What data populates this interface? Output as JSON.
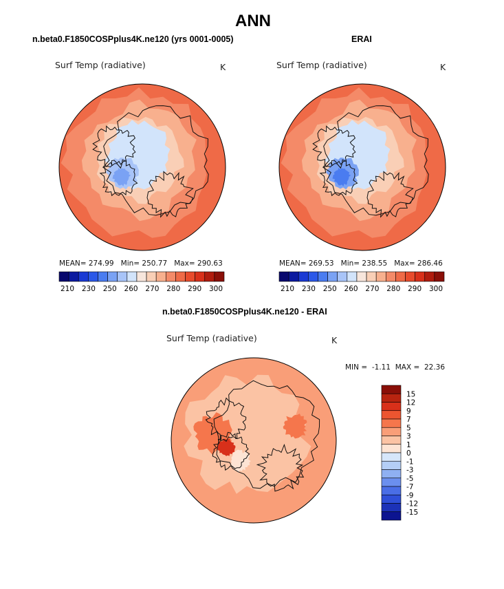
{
  "figure_title": "ANN",
  "chart_data": [
    {
      "type": "heatmap",
      "projection": "north-polar-stereographic",
      "title": "n.beta0.F1850COSPplus4K.ne120 (yrs 0001-0005)",
      "variable": "Surf Temp (radiative)",
      "units": "K",
      "stats": {
        "mean_label": "MEAN=",
        "mean": "274.99",
        "min_label": "Min=",
        "min": "250.77",
        "max_label": "Max=",
        "max": "290.63"
      },
      "colorbar_levels": [
        210,
        215,
        220,
        225,
        230,
        235,
        240,
        245,
        250,
        255,
        260,
        265,
        270,
        275,
        280,
        285,
        290,
        295,
        300,
        305
      ],
      "colorbar_tick_labels": [
        "210",
        "230",
        "250",
        "260",
        "270",
        "280",
        "290",
        "300"
      ],
      "colorbar_colors": [
        "#08086e",
        "#0b1aa0",
        "#1a3ad4",
        "#2b58e8",
        "#4a7cf0",
        "#7aa2f4",
        "#a8c4f8",
        "#d2e4fb",
        "#f7e6dc",
        "#f9cfb6",
        "#f8b08e",
        "#f48a68",
        "#ef6a47",
        "#e84b2c",
        "#d8301a",
        "#b01c0e",
        "#8a0f08"
      ]
    },
    {
      "type": "heatmap",
      "projection": "north-polar-stereographic",
      "title": "ERAI",
      "variable": "Surf Temp (radiative)",
      "units": "K",
      "stats": {
        "mean_label": "MEAN=",
        "mean": "269.53",
        "min_label": "Min=",
        "min": "238.55",
        "max_label": "Max=",
        "max": "286.46"
      },
      "colorbar_levels": [
        210,
        215,
        220,
        225,
        230,
        235,
        240,
        245,
        250,
        255,
        260,
        265,
        270,
        275,
        280,
        285,
        290,
        295,
        300,
        305
      ],
      "colorbar_tick_labels": [
        "210",
        "230",
        "250",
        "260",
        "270",
        "280",
        "290",
        "300"
      ],
      "colorbar_colors": [
        "#08086e",
        "#0b1aa0",
        "#1a3ad4",
        "#2b58e8",
        "#4a7cf0",
        "#7aa2f4",
        "#a8c4f8",
        "#d2e4fb",
        "#f7e6dc",
        "#f9cfb6",
        "#f8b08e",
        "#f48a68",
        "#ef6a47",
        "#e84b2c",
        "#d8301a",
        "#b01c0e",
        "#8a0f08"
      ]
    },
    {
      "type": "heatmap",
      "projection": "north-polar-stereographic",
      "title": "n.beta0.F1850COSPplus4K.ne120 - ERAI",
      "variable": "Surf Temp (radiative)",
      "units": "K",
      "stats": {
        "min_label": "MIN =",
        "min": "-1.11",
        "max_label": "MAX =",
        "max": "22.36"
      },
      "colorbar_levels": [
        -15,
        -12,
        -9,
        -7,
        -5,
        -3,
        -1,
        0,
        1,
        3,
        5,
        7,
        9,
        12,
        15
      ],
      "colorbar_tick_labels": [
        "15",
        "12",
        "9",
        "7",
        "5",
        "3",
        "1",
        "0",
        "-1",
        "-3",
        "-5",
        "-7",
        "-9",
        "-12",
        "-15"
      ],
      "colorbar_colors": [
        "#8a0f08",
        "#b82410",
        "#d8301a",
        "#ec5530",
        "#f5764c",
        "#f99e78",
        "#fbc3a4",
        "#fde4d4",
        "#d6e6fa",
        "#b4cef6",
        "#8fb0f2",
        "#6b8fee",
        "#4a6ee6",
        "#2f4fd8",
        "#1c32b8",
        "#0c1490"
      ]
    }
  ]
}
